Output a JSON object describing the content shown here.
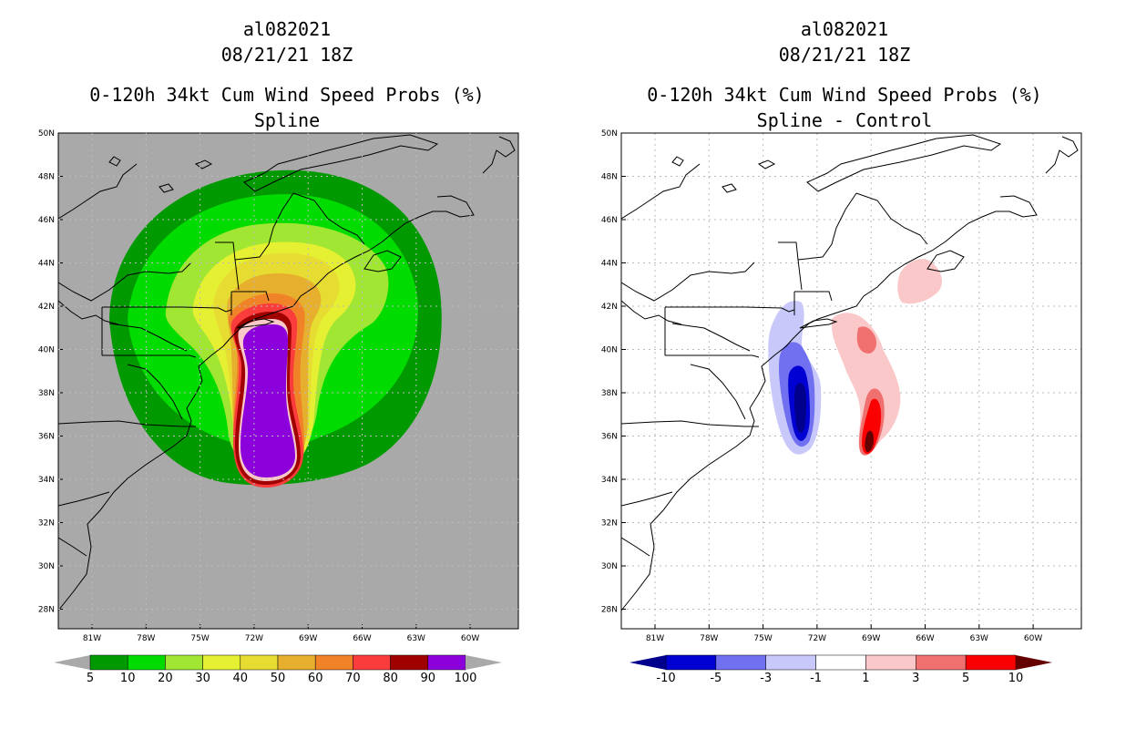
{
  "left_panel": {
    "storm_id": "al082021",
    "datetime": "08/21/21 18Z",
    "product": "0-120h 34kt Cum Wind Speed Probs (%)",
    "subtitle": "Spline",
    "background_color": "#a9a9a9",
    "colorbar": {
      "labels": [
        "5",
        "10",
        "20",
        "30",
        "40",
        "50",
        "60",
        "70",
        "80",
        "90",
        "100"
      ],
      "colors": [
        "#009a00",
        "#00dc00",
        "#a0e632",
        "#e6f032",
        "#e6dc32",
        "#e6af2d",
        "#f08228",
        "#fa3c3c",
        "#a00000",
        "#8c00dc"
      ],
      "end_color": "#a9a9a9"
    }
  },
  "right_panel": {
    "storm_id": "al082021",
    "datetime": "08/21/21 18Z",
    "product": "0-120h 34kt Cum Wind Speed Probs (%)",
    "subtitle": "Spline - Control",
    "background_color": "#ffffff",
    "colorbar": {
      "labels": [
        "-10",
        "-5",
        "-3",
        "-1",
        "1",
        "3",
        "5",
        "10"
      ],
      "colors": [
        "#0000d2",
        "#7070f0",
        "#c8c8fa",
        "#ffffff",
        "#fac8c8",
        "#f07070",
        "#fa0000"
      ],
      "low_end_color": "#00008c",
      "high_end_color": "#640000"
    }
  },
  "map": {
    "lat_labels": [
      "50N",
      "48N",
      "46N",
      "44N",
      "42N",
      "40N",
      "38N",
      "36N",
      "34N",
      "32N",
      "30N",
      "28N"
    ],
    "lon_labels": [
      "81W",
      "78W",
      "75W",
      "72W",
      "69W",
      "66W",
      "63W",
      "60W"
    ]
  }
}
